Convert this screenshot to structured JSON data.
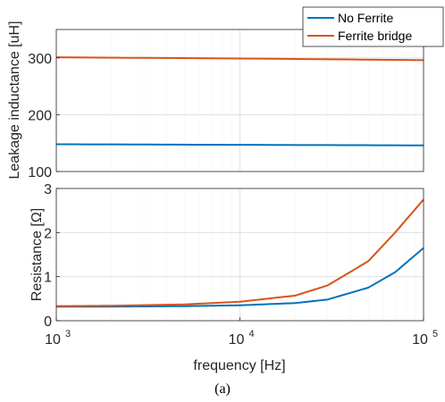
{
  "caption": "(a)",
  "colors": {
    "series_blue": "#0072BD",
    "series_orange": "#D95319",
    "grid": "#dcdcdc",
    "axis": "#262626"
  },
  "legend": {
    "placement": "top-right",
    "entries": [
      "No Ferrite",
      "Ferrite bridge"
    ]
  },
  "chart_data": [
    {
      "type": "line",
      "xscale": "log",
      "xlim": [
        1000,
        100000
      ],
      "ylim": [
        100,
        350
      ],
      "ylabel": "Leakage inductance [uH]",
      "yticks": [
        100,
        200,
        300
      ],
      "yticklabels": [
        "100",
        "200",
        "300"
      ],
      "grid": true,
      "legend": [
        "No Ferrite",
        "Ferrite bridge"
      ],
      "series": [
        {
          "name": "No Ferrite",
          "color": "#0072BD",
          "x": [
            1000,
            10000,
            100000
          ],
          "y": [
            148,
            147,
            146
          ]
        },
        {
          "name": "Ferrite bridge",
          "color": "#D95319",
          "x": [
            1000,
            10000,
            100000
          ],
          "y": [
            301,
            299,
            296
          ]
        }
      ]
    },
    {
      "type": "line",
      "xscale": "log",
      "xlim": [
        1000,
        100000
      ],
      "ylim": [
        0,
        3
      ],
      "ylabel": "Resistance [Ω]",
      "xlabel": "frequency [Hz]",
      "yticks": [
        0,
        1,
        2,
        3
      ],
      "yticklabels": [
        "0",
        "1",
        "2",
        "3"
      ],
      "xticks": [
        1000,
        10000,
        100000
      ],
      "xticklabels": [
        {
          "base": "10",
          "exp": "3"
        },
        {
          "base": "10",
          "exp": "4"
        },
        {
          "base": "10",
          "exp": "5"
        }
      ],
      "grid": true,
      "series": [
        {
          "name": "No Ferrite",
          "color": "#0072BD",
          "x": [
            1000,
            2000,
            5000,
            10000,
            20000,
            30000,
            50000,
            70000,
            100000
          ],
          "y": [
            0.32,
            0.32,
            0.33,
            0.35,
            0.4,
            0.48,
            0.75,
            1.1,
            1.65
          ]
        },
        {
          "name": "Ferrite bridge",
          "color": "#D95319",
          "x": [
            1000,
            2000,
            5000,
            10000,
            20000,
            30000,
            50000,
            70000,
            100000
          ],
          "y": [
            0.33,
            0.34,
            0.37,
            0.43,
            0.57,
            0.8,
            1.35,
            2.0,
            2.75
          ]
        }
      ]
    }
  ]
}
